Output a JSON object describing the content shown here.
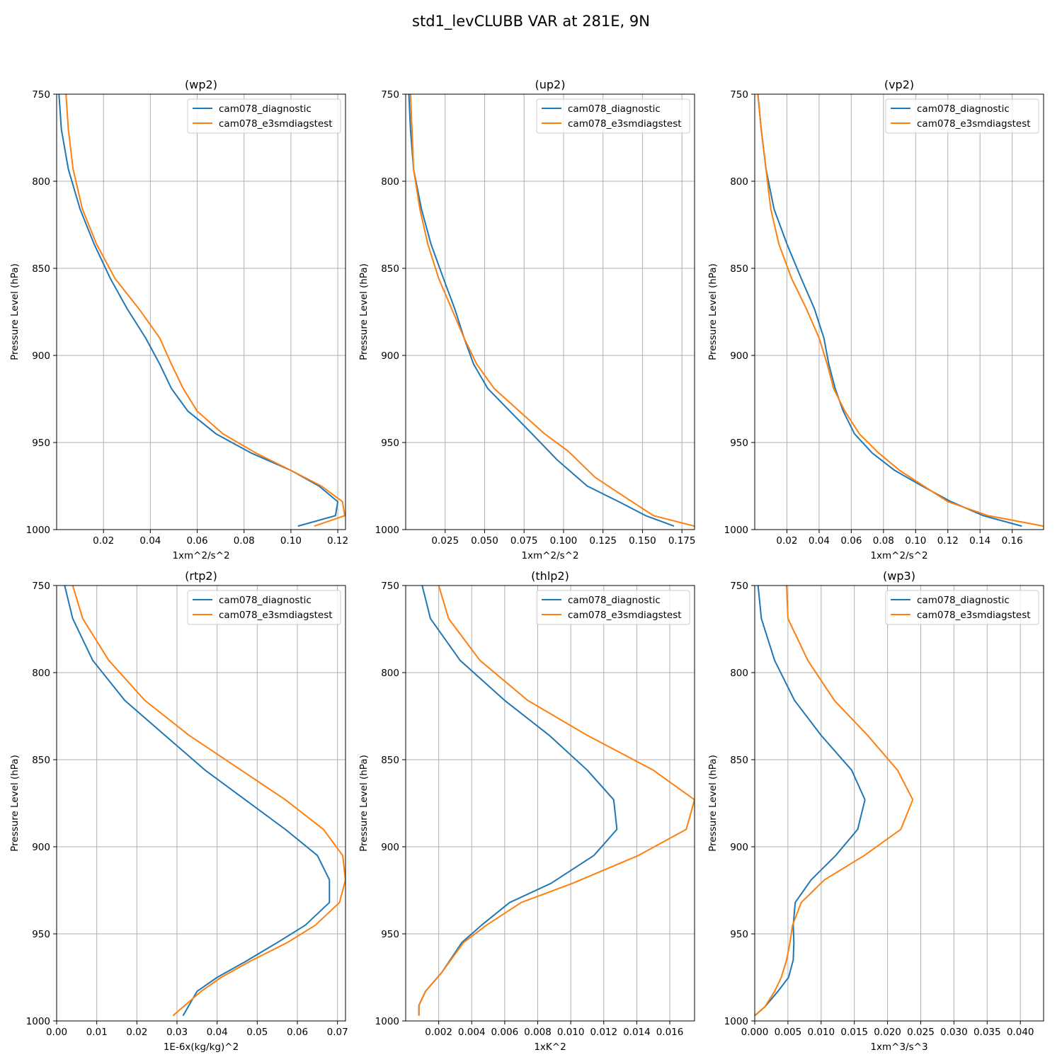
{
  "figure": {
    "title": "std1_levCLUBB VAR at 281E, 9N"
  },
  "colors": {
    "diagnostic": "#1f77b4",
    "e3smdiagstest": "#ff7f0e",
    "grid": "#b0b0b0"
  },
  "chart_data": [
    {
      "type": "line",
      "title": "(wp2)",
      "xlabel": "1xm^2/s^2",
      "ylabel": "Pressure Level (hPa)",
      "xlim": [
        0.0,
        0.1233
      ],
      "ylim": [
        1000,
        750
      ],
      "y_inverted": true,
      "grid": true,
      "legend": "top-right",
      "xticks": [
        0.02,
        0.04,
        0.06,
        0.08,
        0.1,
        0.12
      ],
      "xtick_labels": [
        "0.02",
        "0.04",
        "0.06",
        "0.08",
        "0.10",
        "0.12"
      ],
      "yticks": [
        750,
        800,
        850,
        900,
        950,
        1000
      ],
      "ytick_labels": [
        "750",
        "800",
        "850",
        "900",
        "950",
        "1000"
      ],
      "series": [
        {
          "name": "cam078_diagnostic",
          "color": "#1f77b4",
          "x": [
            0.001,
            0.002,
            0.005,
            0.01,
            0.016,
            0.023,
            0.03,
            0.038,
            0.044,
            0.049,
            0.056,
            0.068,
            0.083,
            0.1,
            0.112,
            0.12,
            0.119,
            0.103
          ],
          "y": [
            750,
            770,
            793,
            816,
            836,
            856,
            873,
            890,
            905,
            919,
            932,
            945,
            956,
            966,
            975,
            984,
            992,
            998
          ]
        },
        {
          "name": "cam078_e3smdiagstest",
          "color": "#ff7f0e",
          "x": [
            0.004,
            0.005,
            0.007,
            0.011,
            0.017,
            0.025,
            0.035,
            0.044,
            0.049,
            0.054,
            0.06,
            0.071,
            0.085,
            0.1,
            0.113,
            0.122,
            0.123,
            0.11
          ],
          "y": [
            750,
            770,
            793,
            816,
            836,
            856,
            873,
            890,
            905,
            919,
            932,
            945,
            956,
            966,
            975,
            984,
            992,
            998
          ]
        }
      ]
    },
    {
      "type": "line",
      "title": "(up2)",
      "xlabel": "1xm^2/s^2",
      "ylabel": "Pressure Level (hPa)",
      "xlim": [
        0.0,
        0.183
      ],
      "ylim": [
        1000,
        750
      ],
      "y_inverted": true,
      "grid": true,
      "legend": "top-right",
      "xticks": [
        0.025,
        0.05,
        0.075,
        0.1,
        0.125,
        0.15,
        0.175
      ],
      "xtick_labels": [
        "0.025",
        "0.050",
        "0.075",
        "0.100",
        "0.125",
        "0.150",
        "0.175"
      ],
      "yticks": [
        750,
        800,
        850,
        900,
        950,
        1000
      ],
      "ytick_labels": [
        "750",
        "800",
        "850",
        "900",
        "950",
        "1000"
      ],
      "series": [
        {
          "name": "cam078_diagnostic",
          "color": "#1f77b4",
          "x": [
            0.002,
            0.003,
            0.005,
            0.01,
            0.016,
            0.024,
            0.031,
            0.037,
            0.043,
            0.052,
            0.066,
            0.08,
            0.096,
            0.115,
            0.135,
            0.152,
            0.17
          ],
          "y": [
            750,
            770,
            793,
            816,
            836,
            856,
            873,
            890,
            905,
            919,
            932,
            945,
            960,
            975,
            984,
            992,
            998
          ]
        },
        {
          "name": "cam078_e3smdiagstest",
          "color": "#ff7f0e",
          "x": [
            0.003,
            0.004,
            0.005,
            0.009,
            0.014,
            0.021,
            0.029,
            0.037,
            0.045,
            0.056,
            0.072,
            0.088,
            0.103,
            0.12,
            0.14,
            0.157,
            0.183
          ],
          "y": [
            750,
            770,
            793,
            816,
            836,
            856,
            873,
            890,
            905,
            919,
            932,
            945,
            955,
            970,
            982,
            992,
            998
          ]
        }
      ]
    },
    {
      "type": "line",
      "title": "(vp2)",
      "xlabel": "1xm^2/s^2",
      "ylabel": "Pressure Level (hPa)",
      "xlim": [
        0.0,
        0.1795
      ],
      "ylim": [
        1000,
        750
      ],
      "y_inverted": true,
      "grid": true,
      "legend": "top-right",
      "xticks": [
        0.02,
        0.04,
        0.06,
        0.08,
        0.1,
        0.12,
        0.14,
        0.16
      ],
      "xtick_labels": [
        "0.02",
        "0.04",
        "0.06",
        "0.08",
        "0.10",
        "0.12",
        "0.14",
        "0.16"
      ],
      "yticks": [
        750,
        800,
        850,
        900,
        950,
        1000
      ],
      "ytick_labels": [
        "750",
        "800",
        "850",
        "900",
        "950",
        "1000"
      ],
      "series": [
        {
          "name": "cam078_diagnostic",
          "color": "#1f77b4",
          "x": [
            0.002,
            0.004,
            0.007,
            0.012,
            0.02,
            0.029,
            0.037,
            0.043,
            0.046,
            0.05,
            0.055,
            0.062,
            0.073,
            0.087,
            0.104,
            0.122,
            0.142,
            0.166
          ],
          "y": [
            750,
            770,
            793,
            816,
            836,
            856,
            873,
            890,
            905,
            919,
            932,
            945,
            956,
            966,
            975,
            984,
            992,
            998
          ]
        },
        {
          "name": "cam078_e3smdiagstest",
          "color": "#ff7f0e",
          "x": [
            0.002,
            0.004,
            0.007,
            0.01,
            0.015,
            0.023,
            0.032,
            0.04,
            0.045,
            0.049,
            0.056,
            0.065,
            0.077,
            0.09,
            0.105,
            0.12,
            0.145,
            0.1795
          ],
          "y": [
            750,
            770,
            793,
            816,
            836,
            856,
            873,
            890,
            905,
            919,
            932,
            945,
            956,
            966,
            975,
            984,
            992,
            998
          ]
        }
      ]
    },
    {
      "type": "line",
      "title": "(rtp2)",
      "xlabel": "1E-6x(kg/kg)^2",
      "ylabel": "Pressure Level (hPa)",
      "xlim": [
        0.0,
        0.072
      ],
      "ylim": [
        1000,
        750
      ],
      "y_inverted": true,
      "grid": true,
      "legend": "top-right",
      "xticks": [
        0.0,
        0.01,
        0.02,
        0.03,
        0.04,
        0.05,
        0.06,
        0.07
      ],
      "xtick_labels": [
        "0.00",
        "0.01",
        "0.02",
        "0.03",
        "0.04",
        "0.05",
        "0.06",
        "0.07"
      ],
      "yticks": [
        750,
        800,
        850,
        900,
        950,
        1000
      ],
      "ytick_labels": [
        "750",
        "800",
        "850",
        "900",
        "950",
        "1000"
      ],
      "series": [
        {
          "name": "cam078_diagnostic",
          "color": "#1f77b4",
          "x": [
            0.002,
            0.004,
            0.009,
            0.017,
            0.027,
            0.037,
            0.047,
            0.057,
            0.065,
            0.068,
            0.068,
            0.062,
            0.055,
            0.047,
            0.04,
            0.035,
            0.0315
          ],
          "y": [
            750,
            769,
            793,
            816,
            836,
            856,
            873,
            890,
            905,
            919,
            932,
            945,
            955,
            966,
            975,
            983,
            997
          ]
        },
        {
          "name": "cam078_e3smdiagstest",
          "color": "#ff7f0e",
          "x": [
            0.004,
            0.0065,
            0.013,
            0.022,
            0.033,
            0.046,
            0.057,
            0.0665,
            0.0713,
            0.072,
            0.0705,
            0.0645,
            0.0575,
            0.048,
            0.041,
            0.036,
            0.029
          ],
          "y": [
            750,
            769,
            793,
            816,
            836,
            856,
            873,
            890,
            905,
            919,
            932,
            945,
            955,
            966,
            975,
            983,
            997
          ]
        }
      ]
    },
    {
      "type": "line",
      "title": "(thlp2)",
      "xlabel": "1xK^2",
      "ylabel": "Pressure Level (hPa)",
      "xlim": [
        0.0,
        0.0175
      ],
      "ylim": [
        1000,
        750
      ],
      "y_inverted": true,
      "grid": true,
      "legend": "top-right",
      "xticks": [
        0.002,
        0.004,
        0.006,
        0.008,
        0.01,
        0.012,
        0.014,
        0.016
      ],
      "xtick_labels": [
        "0.002",
        "0.004",
        "0.006",
        "0.008",
        "0.010",
        "0.012",
        "0.014",
        "0.016"
      ],
      "yticks": [
        750,
        800,
        850,
        900,
        950,
        1000
      ],
      "ytick_labels": [
        "750",
        "800",
        "850",
        "900",
        "950",
        "1000"
      ],
      "series": [
        {
          "name": "cam078_diagnostic",
          "color": "#1f77b4",
          "x": [
            0.001,
            0.0015,
            0.0033,
            0.006,
            0.0087,
            0.011,
            0.0126,
            0.0128,
            0.0114,
            0.0088,
            0.0063,
            0.0046,
            0.0034,
            0.0022,
            0.0012,
            0.0008,
            0.0008
          ],
          "y": [
            750,
            769,
            793,
            816,
            836,
            856,
            873,
            890,
            905,
            921,
            932,
            945,
            955,
            972,
            983,
            991,
            997
          ]
        },
        {
          "name": "cam078_e3smdiagstest",
          "color": "#ff7f0e",
          "x": [
            0.002,
            0.0026,
            0.0045,
            0.0074,
            0.011,
            0.015,
            0.0175,
            0.017,
            0.0141,
            0.0101,
            0.007,
            0.0049,
            0.0035,
            0.0022,
            0.0012,
            0.0008,
            0.0008
          ],
          "y": [
            750,
            769,
            793,
            816,
            836,
            856,
            873,
            890,
            905,
            921,
            932,
            945,
            955,
            972,
            983,
            991,
            997
          ]
        }
      ]
    },
    {
      "type": "line",
      "title": "(wp3)",
      "xlabel": "1xm^3/s^3",
      "ylabel": "Pressure Level (hPa)",
      "xlim": [
        0.0,
        0.0435
      ],
      "ylim": [
        1000,
        750
      ],
      "y_inverted": true,
      "grid": true,
      "legend": "top-right",
      "xticks": [
        0.0,
        0.005,
        0.01,
        0.015,
        0.02,
        0.025,
        0.03,
        0.035,
        0.04
      ],
      "xtick_labels": [
        "0.000",
        "0.005",
        "0.010",
        "0.015",
        "0.020",
        "0.025",
        "0.030",
        "0.035",
        "0.040"
      ],
      "yticks": [
        750,
        800,
        850,
        900,
        950,
        1000
      ],
      "ytick_labels": [
        "750",
        "800",
        "850",
        "900",
        "950",
        "1000"
      ],
      "series": [
        {
          "name": "cam078_diagnostic",
          "color": "#1f77b4",
          "x": [
            0.0005,
            0.001,
            0.003,
            0.006,
            0.01,
            0.0146,
            0.0166,
            0.0155,
            0.0122,
            0.0085,
            0.0061,
            0.0058,
            0.0059,
            0.0058,
            0.0051,
            0.0035,
            0.0015,
            0.0
          ],
          "y": [
            750,
            769,
            793,
            816,
            836,
            856,
            873,
            890,
            905,
            919,
            932,
            945,
            955,
            965,
            975,
            983,
            992,
            997
          ]
        },
        {
          "name": "cam078_e3smdiagstest",
          "color": "#ff7f0e",
          "x": [
            0.0048,
            0.005,
            0.008,
            0.012,
            0.017,
            0.0215,
            0.0238,
            0.022,
            0.0165,
            0.0105,
            0.007,
            0.0057,
            0.0053,
            0.0048,
            0.004,
            0.003,
            0.0015,
            0.0
          ],
          "y": [
            750,
            769,
            793,
            816,
            836,
            856,
            873,
            890,
            905,
            919,
            932,
            945,
            955,
            965,
            975,
            983,
            992,
            997
          ]
        }
      ]
    }
  ]
}
